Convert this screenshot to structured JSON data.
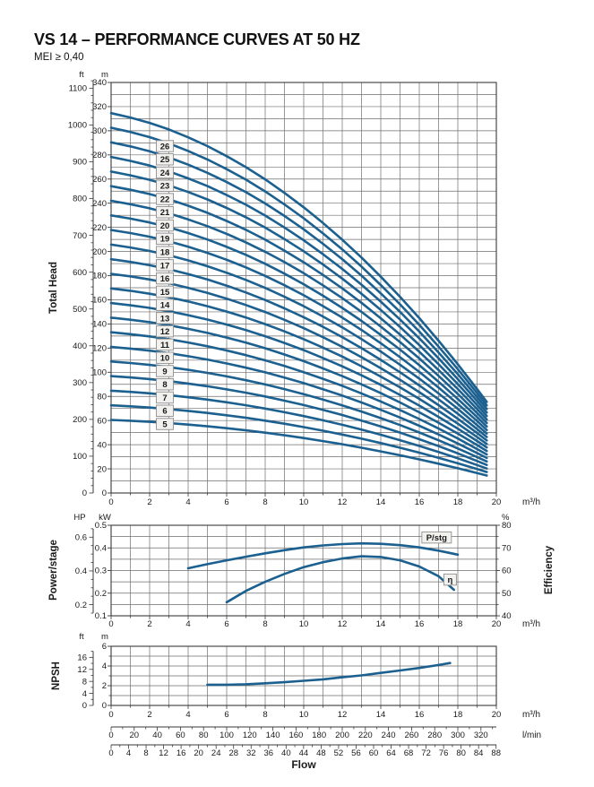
{
  "header": {
    "title": "VS 14 – PERFORMANCE CURVES AT 50 HZ",
    "subtitle": "MEI ≥ 0,40"
  },
  "colors": {
    "curve": "#1c6090",
    "grid": "#6e6e6e",
    "frame": "#3a3a3a",
    "text": "#1a1a1a",
    "box_bg": "#f2f1ee",
    "box_border": "#8f8f8f",
    "background": "#ffffff"
  },
  "chart_data": [
    {
      "id": "total_head",
      "type": "line",
      "ylabel": "Total Head",
      "x_axis": {
        "unit": "m³/h",
        "min": 0,
        "max": 20,
        "grid_step": 1,
        "labels": [
          0,
          2,
          4,
          6,
          8,
          10,
          12,
          14,
          16,
          18,
          20
        ]
      },
      "y_axis_m": {
        "unit": "m",
        "min": 0,
        "max": 340,
        "grid_step": 10,
        "labels": [
          0,
          20,
          40,
          60,
          80,
          100,
          120,
          140,
          160,
          180,
          200,
          220,
          240,
          260,
          280,
          300,
          320,
          340
        ]
      },
      "y_axis_ft": {
        "unit": "ft",
        "labels": [
          0,
          100,
          200,
          300,
          400,
          500,
          600,
          700,
          800,
          900,
          1000,
          1100
        ],
        "minor_step": 20,
        "axis_max": 1120
      },
      "stages": [
        5,
        6,
        7,
        8,
        9,
        10,
        11,
        12,
        13,
        14,
        15,
        16,
        17,
        18,
        19,
        20,
        21,
        22,
        23,
        24,
        25,
        26
      ],
      "flow_m3h": [
        0,
        1,
        2,
        3,
        4,
        5,
        6,
        7,
        8,
        9,
        10,
        11,
        12,
        13,
        14,
        15,
        16,
        17,
        18,
        19,
        19.5
      ],
      "head_per_stage_m": [
        12.1,
        11.96,
        11.79,
        11.58,
        11.33,
        11.05,
        10.73,
        10.38,
        9.99,
        9.56,
        9.1,
        8.6,
        8.07,
        7.5,
        6.89,
        6.25,
        5.57,
        4.85,
        4.1,
        3.31,
        2.9
      ]
    },
    {
      "id": "power_efficiency",
      "type": "line",
      "ylabel_left": "Power/stage",
      "ylabel_right": "Efficiency",
      "x_axis": {
        "unit": "m³/h",
        "min": 0,
        "max": 20,
        "grid_step": 1,
        "labels": [
          0,
          2,
          4,
          6,
          8,
          10,
          12,
          14,
          16,
          18,
          20
        ]
      },
      "y_axis_kw": {
        "unit": "kW",
        "min": 0.1,
        "max": 0.5,
        "grid_step": 0.05,
        "labels": [
          0.1,
          0.2,
          0.3,
          0.4,
          0.5
        ]
      },
      "y_axis_hp": {
        "unit": "HP",
        "labels": [
          0.2,
          0.4,
          0.6
        ],
        "minor_step": 0.05,
        "axis_min": 0.15,
        "axis_max": 0.65
      },
      "y_axis_pct": {
        "unit": "%",
        "min": 40,
        "max": 80,
        "minor_step": 5,
        "labels": [
          40,
          50,
          60,
          70,
          80
        ]
      },
      "series": [
        {
          "name": "P/stg",
          "unit": "kW",
          "label": "P/stg",
          "label_at": {
            "flow": 16.9,
            "kw": 0.446
          },
          "flow_m3h": [
            4,
            5,
            6,
            7,
            8,
            9,
            10,
            11,
            12,
            13,
            14,
            15,
            16,
            17,
            18
          ],
          "values": [
            0.31,
            0.328,
            0.345,
            0.361,
            0.376,
            0.39,
            0.402,
            0.411,
            0.417,
            0.42,
            0.418,
            0.412,
            0.402,
            0.388,
            0.37
          ]
        },
        {
          "name": "η",
          "unit": "%",
          "label": "η",
          "label_at": {
            "flow": 17.6,
            "pct": 56
          },
          "flow_m3h": [
            6,
            7,
            8,
            9,
            10,
            11,
            12,
            13,
            14,
            15,
            16,
            17,
            17.8
          ],
          "values": [
            46,
            51,
            55,
            58.5,
            61.5,
            63.7,
            65.3,
            66.3,
            66.0,
            64.5,
            61.8,
            57.5,
            51.5
          ]
        }
      ]
    },
    {
      "id": "npsh",
      "type": "line",
      "ylabel": "NPSH",
      "x_axis": {
        "unit": "m³/h",
        "min": 0,
        "max": 20,
        "grid_step": 1,
        "labels": [
          0,
          2,
          4,
          6,
          8,
          10,
          12,
          14,
          16,
          18,
          20
        ]
      },
      "y_axis_m": {
        "unit": "m",
        "min": 0,
        "max": 6,
        "grid_step": 1,
        "labels": [
          0,
          2,
          4,
          6
        ]
      },
      "y_axis_ft": {
        "unit": "ft",
        "labels": [
          0,
          4,
          8,
          12,
          16
        ],
        "minor_step": 2,
        "axis_max": 18
      },
      "series": [
        {
          "name": "NPSH",
          "unit": "m",
          "flow_m3h": [
            5,
            6,
            7,
            8,
            9,
            10,
            11,
            12,
            13,
            14,
            15,
            16,
            17,
            17.6
          ],
          "values": [
            2.1,
            2.1,
            2.15,
            2.25,
            2.35,
            2.5,
            2.65,
            2.85,
            3.05,
            3.3,
            3.55,
            3.8,
            4.1,
            4.3
          ]
        }
      ]
    }
  ],
  "flow_scales": {
    "title": "Flow",
    "m3h": {
      "unit": "m³/h",
      "labels": [
        0,
        2,
        4,
        6,
        8,
        10,
        12,
        14,
        16,
        18,
        20
      ]
    },
    "lmin": {
      "unit": "l/min",
      "per_m3h": 16.6667,
      "minor_step": 10,
      "labels": [
        0,
        20,
        40,
        60,
        80,
        100,
        120,
        140,
        160,
        180,
        200,
        220,
        240,
        260,
        280,
        300,
        320
      ]
    },
    "gpm": {
      "unit": "",
      "per_m3h": 4.4029,
      "minor_step": 2,
      "labels": [
        0,
        4,
        8,
        12,
        16,
        20,
        24,
        28,
        32,
        36,
        40,
        44,
        48,
        52,
        56,
        60,
        64,
        68,
        72,
        76,
        80,
        84,
        88
      ]
    }
  }
}
